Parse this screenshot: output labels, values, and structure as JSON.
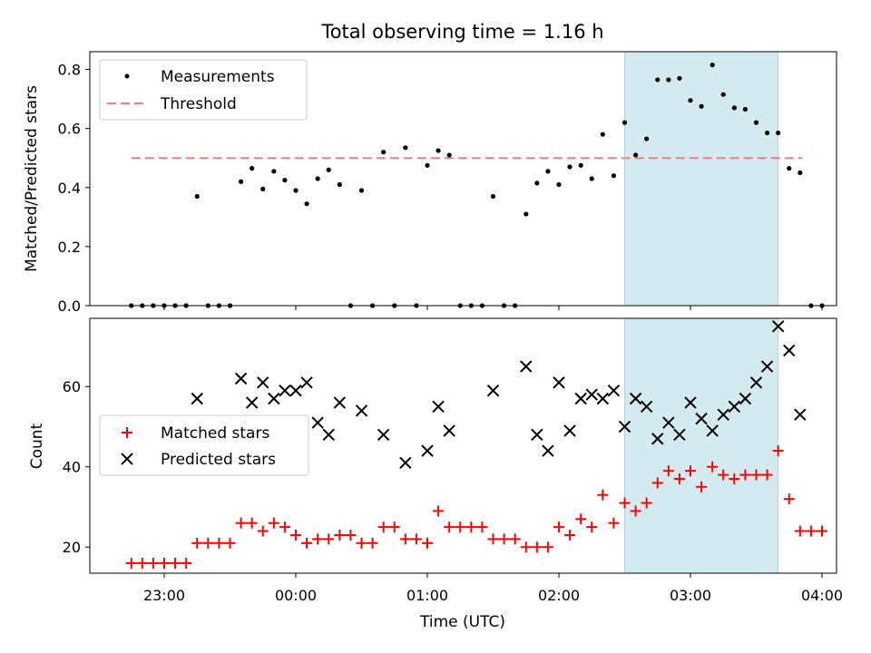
{
  "chart_data": [
    {
      "type": "scatter",
      "title": "Total observing time = 1.16 h",
      "ylabel": "Matched/Predicted stars",
      "ylim": [
        0,
        0.86
      ],
      "yticks": [
        0.0,
        0.2,
        0.4,
        0.6,
        0.8
      ],
      "ytick_labels": [
        "0.0",
        "0.2",
        "0.4",
        "0.6",
        "0.8"
      ],
      "legend": {
        "placement": "upper-left",
        "entries": [
          "Measurements",
          "Threshold"
        ]
      },
      "threshold": {
        "name": "Threshold",
        "y": 0.5,
        "x": [
          "22:45",
          "03:51"
        ],
        "color": "#f08080"
      },
      "series": [
        {
          "name": "Measurements",
          "color": "#000000",
          "points": [
            [
              "22:45",
              0.0
            ],
            [
              "22:50",
              0.0
            ],
            [
              "22:55",
              0.0
            ],
            [
              "23:00",
              0.0
            ],
            [
              "23:05",
              0.0
            ],
            [
              "23:10",
              0.0
            ],
            [
              "23:15",
              0.37
            ],
            [
              "23:20",
              0.0
            ],
            [
              "23:25",
              0.0
            ],
            [
              "23:30",
              0.0
            ],
            [
              "23:35",
              0.42
            ],
            [
              "23:40",
              0.465
            ],
            [
              "23:45",
              0.395
            ],
            [
              "23:50",
              0.455
            ],
            [
              "23:55",
              0.425
            ],
            [
              "00:00",
              0.39
            ],
            [
              "00:05",
              0.345
            ],
            [
              "00:10",
              0.43
            ],
            [
              "00:15",
              0.46
            ],
            [
              "00:20",
              0.41
            ],
            [
              "00:25",
              0.0
            ],
            [
              "00:30",
              0.39
            ],
            [
              "00:35",
              0.0
            ],
            [
              "00:40",
              0.52
            ],
            [
              "00:45",
              0.0
            ],
            [
              "00:50",
              0.535
            ],
            [
              "00:55",
              0.0
            ],
            [
              "01:00",
              0.475
            ],
            [
              "01:05",
              0.525
            ],
            [
              "01:10",
              0.51
            ],
            [
              "01:15",
              0.0
            ],
            [
              "01:20",
              0.0
            ],
            [
              "01:25",
              0.0
            ],
            [
              "01:30",
              0.37
            ],
            [
              "01:35",
              0.0
            ],
            [
              "01:40",
              0.0
            ],
            [
              "01:45",
              0.31
            ],
            [
              "01:50",
              0.415
            ],
            [
              "01:55",
              0.455
            ],
            [
              "02:00",
              0.41
            ],
            [
              "02:05",
              0.47
            ],
            [
              "02:10",
              0.475
            ],
            [
              "02:15",
              0.43
            ],
            [
              "02:20",
              0.58
            ],
            [
              "02:25",
              0.44
            ],
            [
              "02:30",
              0.62
            ],
            [
              "02:35",
              0.51
            ],
            [
              "02:40",
              0.565
            ],
            [
              "02:45",
              0.765
            ],
            [
              "02:50",
              0.765
            ],
            [
              "02:55",
              0.77
            ],
            [
              "03:00",
              0.695
            ],
            [
              "03:05",
              0.675
            ],
            [
              "03:10",
              0.815
            ],
            [
              "03:15",
              0.715
            ],
            [
              "03:20",
              0.67
            ],
            [
              "03:25",
              0.665
            ],
            [
              "03:30",
              0.62
            ],
            [
              "03:35",
              0.585
            ],
            [
              "03:40",
              0.585
            ],
            [
              "03:45",
              0.465
            ],
            [
              "03:50",
              0.45
            ],
            [
              "03:55",
              0.0
            ],
            [
              "04:00",
              0.0
            ]
          ]
        }
      ],
      "shaded_span": {
        "x": [
          "02:30",
          "03:40"
        ],
        "color": "#d4eaf1"
      }
    },
    {
      "type": "scatter",
      "xlabel": "Time (UTC)",
      "ylabel": "Count",
      "ylim": [
        13.5,
        77
      ],
      "yticks": [
        20,
        40,
        60
      ],
      "ytick_labels": [
        "20",
        "40",
        "60"
      ],
      "xticks": [
        "23:00",
        "00:00",
        "01:00",
        "02:00",
        "03:00",
        "04:00"
      ],
      "xtick_labels": [
        "23:00",
        "00:00",
        "01:00",
        "02:00",
        "03:00",
        "04:00"
      ],
      "legend": {
        "placement": "center-left",
        "entries": [
          "Matched stars",
          "Predicted stars"
        ]
      },
      "shaded_span": {
        "x": [
          "02:30",
          "03:40"
        ],
        "color": "#d4eaf1"
      },
      "series": [
        {
          "name": "Matched stars",
          "marker": "+",
          "color": "#ff0000",
          "points": [
            [
              "22:45",
              16
            ],
            [
              "22:50",
              16
            ],
            [
              "22:55",
              16
            ],
            [
              "23:00",
              16
            ],
            [
              "23:05",
              16
            ],
            [
              "23:10",
              16
            ],
            [
              "23:15",
              21
            ],
            [
              "23:20",
              21
            ],
            [
              "23:25",
              21
            ],
            [
              "23:30",
              21
            ],
            [
              "23:35",
              26
            ],
            [
              "23:40",
              26
            ],
            [
              "23:45",
              24
            ],
            [
              "23:50",
              26
            ],
            [
              "23:55",
              25
            ],
            [
              "00:00",
              23
            ],
            [
              "00:05",
              21
            ],
            [
              "00:10",
              22
            ],
            [
              "00:15",
              22
            ],
            [
              "00:20",
              23
            ],
            [
              "00:25",
              23
            ],
            [
              "00:30",
              21
            ],
            [
              "00:35",
              21
            ],
            [
              "00:40",
              25
            ],
            [
              "00:45",
              25
            ],
            [
              "00:50",
              22
            ],
            [
              "00:55",
              22
            ],
            [
              "01:00",
              21
            ],
            [
              "01:05",
              29
            ],
            [
              "01:10",
              25
            ],
            [
              "01:15",
              25
            ],
            [
              "01:20",
              25
            ],
            [
              "01:25",
              25
            ],
            [
              "01:30",
              22
            ],
            [
              "01:35",
              22
            ],
            [
              "01:40",
              22
            ],
            [
              "01:45",
              20
            ],
            [
              "01:50",
              20
            ],
            [
              "01:55",
              20
            ],
            [
              "02:00",
              25
            ],
            [
              "02:05",
              23
            ],
            [
              "02:10",
              27
            ],
            [
              "02:15",
              25
            ],
            [
              "02:20",
              33
            ],
            [
              "02:25",
              26
            ],
            [
              "02:30",
              31
            ],
            [
              "02:35",
              29
            ],
            [
              "02:40",
              31
            ],
            [
              "02:45",
              36
            ],
            [
              "02:50",
              39
            ],
            [
              "02:55",
              37
            ],
            [
              "03:00",
              39
            ],
            [
              "03:05",
              35
            ],
            [
              "03:10",
              40
            ],
            [
              "03:15",
              38
            ],
            [
              "03:20",
              37
            ],
            [
              "03:25",
              38
            ],
            [
              "03:30",
              38
            ],
            [
              "03:35",
              38
            ],
            [
              "03:40",
              44
            ],
            [
              "03:45",
              32
            ],
            [
              "03:50",
              24
            ],
            [
              "03:55",
              24
            ],
            [
              "04:00",
              24
            ]
          ]
        },
        {
          "name": "Predicted stars",
          "marker": "x",
          "color": "#000000",
          "points": [
            [
              "23:15",
              57
            ],
            [
              "23:35",
              62
            ],
            [
              "23:40",
              56
            ],
            [
              "23:45",
              61
            ],
            [
              "23:50",
              57
            ],
            [
              "23:55",
              59
            ],
            [
              "00:00",
              59
            ],
            [
              "00:05",
              61
            ],
            [
              "00:10",
              51
            ],
            [
              "00:15",
              48
            ],
            [
              "00:20",
              56
            ],
            [
              "00:30",
              54
            ],
            [
              "00:40",
              48
            ],
            [
              "00:50",
              41
            ],
            [
              "01:00",
              44
            ],
            [
              "01:05",
              55
            ],
            [
              "01:10",
              49
            ],
            [
              "01:30",
              59
            ],
            [
              "01:45",
              65
            ],
            [
              "01:50",
              48
            ],
            [
              "01:55",
              44
            ],
            [
              "02:00",
              61
            ],
            [
              "02:05",
              49
            ],
            [
              "02:10",
              57
            ],
            [
              "02:15",
              58
            ],
            [
              "02:20",
              57
            ],
            [
              "02:25",
              59
            ],
            [
              "02:30",
              50
            ],
            [
              "02:35",
              57
            ],
            [
              "02:40",
              55
            ],
            [
              "02:45",
              47
            ],
            [
              "02:50",
              51
            ],
            [
              "02:55",
              48
            ],
            [
              "03:00",
              56
            ],
            [
              "03:05",
              52
            ],
            [
              "03:10",
              49
            ],
            [
              "03:15",
              53
            ],
            [
              "03:20",
              55
            ],
            [
              "03:25",
              57
            ],
            [
              "03:30",
              61
            ],
            [
              "03:35",
              65
            ],
            [
              "03:40",
              75
            ],
            [
              "03:45",
              69
            ],
            [
              "03:50",
              53
            ]
          ]
        }
      ]
    }
  ]
}
